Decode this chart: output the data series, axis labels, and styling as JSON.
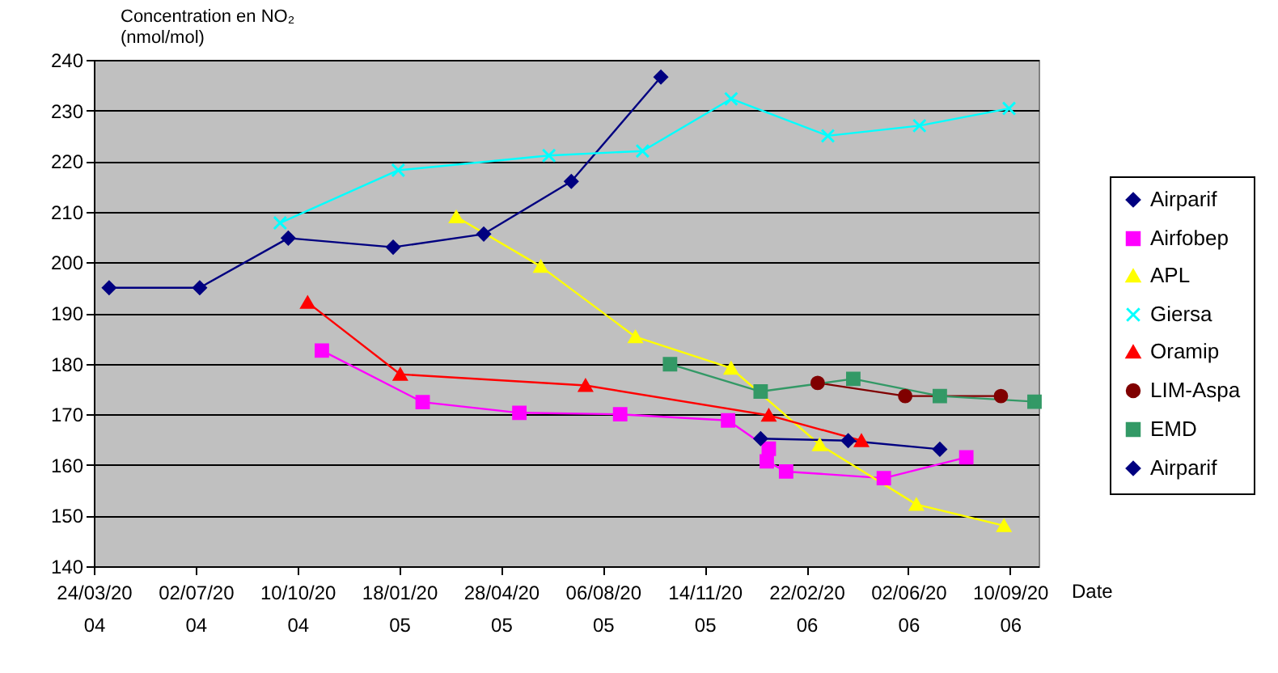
{
  "chart_data": {
    "type": "line",
    "ylabel": "Concentration en NO₂ (nmol/mol)",
    "xlabel": "Date",
    "xlim": [
      "2004-03-24",
      "2006-10-08"
    ],
    "xticks": [
      {
        "value": "2004-03-24",
        "label": "24/03/2004"
      },
      {
        "value": "2004-07-02",
        "label": "02/07/2004"
      },
      {
        "value": "2004-10-10",
        "label": "10/10/2004"
      },
      {
        "value": "2005-01-18",
        "label": "18/01/2005"
      },
      {
        "value": "2005-04-28",
        "label": "28/04/2005"
      },
      {
        "value": "2005-08-06",
        "label": "06/08/2005"
      },
      {
        "value": "2005-11-14",
        "label": "14/11/2005"
      },
      {
        "value": "2006-02-22",
        "label": "22/02/2006"
      },
      {
        "value": "2006-06-02",
        "label": "02/06/2006"
      },
      {
        "value": "2006-09-10",
        "label": "10/09/2006"
      }
    ],
    "ylim": [
      140,
      240
    ],
    "yticks": [
      140,
      150,
      160,
      170,
      180,
      190,
      200,
      210,
      220,
      230,
      240
    ],
    "grid": "y",
    "legend": "right",
    "series": [
      {
        "name": "Airparif",
        "color": "#000080",
        "marker": "diamond",
        "x": [
          "2004-04-08",
          "2004-07-06",
          "2004-10-01",
          "2005-01-12",
          "2005-04-11",
          "2005-07-06",
          "2005-10-02"
        ],
        "values": [
          195,
          195,
          204.8,
          203,
          205.6,
          216,
          236.6
        ]
      },
      {
        "name": "Airfobep",
        "color": "#ff00ff",
        "marker": "square",
        "x": [
          "2004-11-03",
          "2005-02-10",
          "2005-05-16",
          "2005-08-23",
          "2005-12-07",
          "2006-01-16",
          "2006-01-14",
          "2006-02-02",
          "2006-05-09",
          "2006-07-29"
        ],
        "values": [
          182.6,
          172.4,
          170.3,
          170,
          168.8,
          163.2,
          160.7,
          158.7,
          157.4,
          161.5
        ]
      },
      {
        "name": "APL",
        "color": "#ffff00",
        "marker": "triangle",
        "x": [
          "2005-03-15",
          "2005-06-06",
          "2005-09-07",
          "2005-12-10",
          "2006-03-07",
          "2006-06-10",
          "2006-09-04"
        ],
        "values": [
          209,
          199.2,
          185.3,
          179.1,
          164,
          152.2,
          148
        ]
      },
      {
        "name": "Giersa",
        "color": "#00ffff",
        "marker": "cross",
        "x": [
          "2004-09-23",
          "2005-01-17",
          "2005-06-14",
          "2005-09-14",
          "2005-12-10",
          "2006-03-15",
          "2006-06-13",
          "2006-09-09"
        ],
        "values": [
          207.8,
          218.2,
          221.1,
          222,
          232.3,
          225,
          227,
          230.4
        ]
      },
      {
        "name": "Oramip",
        "color": "#ff0000",
        "marker": "triangle",
        "x": [
          "2004-10-20",
          "2005-01-19",
          "2005-07-20",
          "2006-01-16",
          "2006-04-17"
        ],
        "values": [
          192.1,
          177.9,
          175.7,
          169.8,
          164.8
        ]
      },
      {
        "name": "LIM-Aspa",
        "color": "#800000",
        "marker": "circle",
        "x": [
          "2006-03-05",
          "2006-05-30",
          "2006-09-01"
        ],
        "values": [
          176.2,
          173.6,
          173.6
        ]
      },
      {
        "name": "EMD",
        "color": "#339966",
        "marker": "square",
        "x": [
          "2005-10-11",
          "2006-01-08",
          "2006-04-09",
          "2006-07-03",
          "2006-10-04"
        ],
        "values": [
          179.9,
          174.5,
          177,
          173.6,
          172.5
        ]
      },
      {
        "name": "Airparif",
        "color": "#000080",
        "marker": "diamond",
        "x": [
          "2006-01-08",
          "2006-04-04",
          "2006-07-03"
        ],
        "values": [
          165.2,
          164.8,
          163.1
        ]
      }
    ]
  }
}
